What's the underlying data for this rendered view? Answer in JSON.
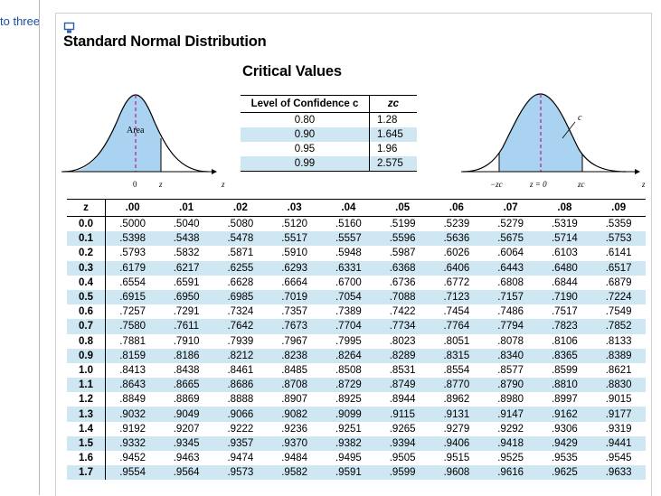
{
  "sidebar": {
    "link_text": "to three"
  },
  "doc": {
    "title": "Standard Normal Distribution",
    "critical_title": "Critical Values",
    "critical_table": {
      "header_conf": "Level of Confidence c",
      "header_z": "zc",
      "rows": [
        [
          "0.80",
          "1.28"
        ],
        [
          "0.90",
          "1.645"
        ],
        [
          "0.95",
          "1.96"
        ],
        [
          "0.99",
          "2.575"
        ]
      ]
    },
    "left_curve": {
      "area_label": "Area",
      "zero_label": "0",
      "z_label": "z",
      "axis_label": "z"
    },
    "right_curve": {
      "c_label": "c",
      "neg_zc": "−zc",
      "zero_label": "z = 0",
      "zc": "zc",
      "axis_label": "z"
    },
    "z_table": {
      "headers": [
        "z",
        ".00",
        ".01",
        ".02",
        ".03",
        ".04",
        ".05",
        ".06",
        ".07",
        ".08",
        ".09"
      ],
      "rows": [
        [
          "0.0",
          ".5000",
          ".5040",
          ".5080",
          ".5120",
          ".5160",
          ".5199",
          ".5239",
          ".5279",
          ".5319",
          ".5359"
        ],
        [
          "0.1",
          ".5398",
          ".5438",
          ".5478",
          ".5517",
          ".5557",
          ".5596",
          ".5636",
          ".5675",
          ".5714",
          ".5753"
        ],
        [
          "0.2",
          ".5793",
          ".5832",
          ".5871",
          ".5910",
          ".5948",
          ".5987",
          ".6026",
          ".6064",
          ".6103",
          ".6141"
        ],
        [
          "0.3",
          ".6179",
          ".6217",
          ".6255",
          ".6293",
          ".6331",
          ".6368",
          ".6406",
          ".6443",
          ".6480",
          ".6517"
        ],
        [
          "0.4",
          ".6554",
          ".6591",
          ".6628",
          ".6664",
          ".6700",
          ".6736",
          ".6772",
          ".6808",
          ".6844",
          ".6879"
        ],
        [
          "0.5",
          ".6915",
          ".6950",
          ".6985",
          ".7019",
          ".7054",
          ".7088",
          ".7123",
          ".7157",
          ".7190",
          ".7224"
        ],
        [
          "0.6",
          ".7257",
          ".7291",
          ".7324",
          ".7357",
          ".7389",
          ".7422",
          ".7454",
          ".7486",
          ".7517",
          ".7549"
        ],
        [
          "0.7",
          ".7580",
          ".7611",
          ".7642",
          ".7673",
          ".7704",
          ".7734",
          ".7764",
          ".7794",
          ".7823",
          ".7852"
        ],
        [
          "0.8",
          ".7881",
          ".7910",
          ".7939",
          ".7967",
          ".7995",
          ".8023",
          ".8051",
          ".8078",
          ".8106",
          ".8133"
        ],
        [
          "0.9",
          ".8159",
          ".8186",
          ".8212",
          ".8238",
          ".8264",
          ".8289",
          ".8315",
          ".8340",
          ".8365",
          ".8389"
        ],
        [
          "1.0",
          ".8413",
          ".8438",
          ".8461",
          ".8485",
          ".8508",
          ".8531",
          ".8554",
          ".8577",
          ".8599",
          ".8621"
        ],
        [
          "1.1",
          ".8643",
          ".8665",
          ".8686",
          ".8708",
          ".8729",
          ".8749",
          ".8770",
          ".8790",
          ".8810",
          ".8830"
        ],
        [
          "1.2",
          ".8849",
          ".8869",
          ".8888",
          ".8907",
          ".8925",
          ".8944",
          ".8962",
          ".8980",
          ".8997",
          ".9015"
        ],
        [
          "1.3",
          ".9032",
          ".9049",
          ".9066",
          ".9082",
          ".9099",
          ".9115",
          ".9131",
          ".9147",
          ".9162",
          ".9177"
        ],
        [
          "1.4",
          ".9192",
          ".9207",
          ".9222",
          ".9236",
          ".9251",
          ".9265",
          ".9279",
          ".9292",
          ".9306",
          ".9319"
        ],
        [
          "1.5",
          ".9332",
          ".9345",
          ".9357",
          ".9370",
          ".9382",
          ".9394",
          ".9406",
          ".9418",
          ".9429",
          ".9441"
        ],
        [
          "1.6",
          ".9452",
          ".9463",
          ".9474",
          ".9484",
          ".9495",
          ".9505",
          ".9515",
          ".9525",
          ".9535",
          ".9545"
        ],
        [
          "1.7",
          ".9554",
          ".9564",
          ".9573",
          ".9582",
          ".9591",
          ".9599",
          ".9608",
          ".9616",
          ".9625",
          ".9633"
        ]
      ]
    }
  },
  "colors": {
    "fill": "#a9d3f0",
    "band": "#cfe6f3",
    "dash": "#c0168a"
  }
}
